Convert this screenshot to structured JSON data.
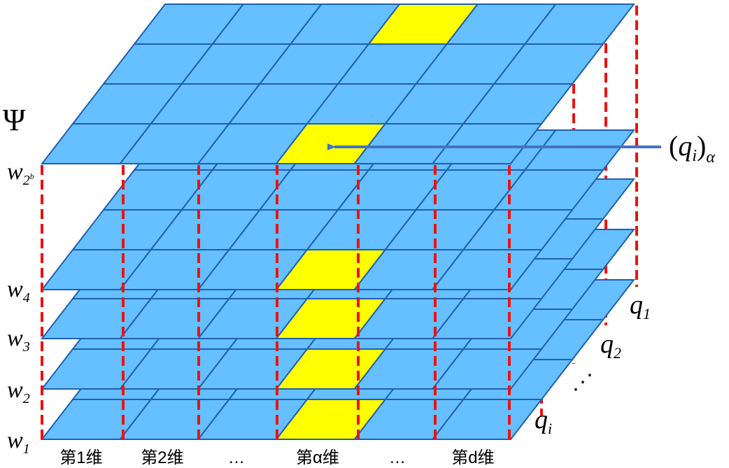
{
  "symbol": "Ψ",
  "w_labels": [
    {
      "base": "w",
      "sub": "1"
    },
    {
      "base": "w",
      "sub": "2"
    },
    {
      "base": "w",
      "sub": "3"
    },
    {
      "base": "w",
      "sub": "4"
    },
    {
      "base": "w",
      "sub": "2",
      "sup": "b"
    }
  ],
  "q_labels": [
    {
      "base": "q",
      "sub": "1"
    },
    {
      "base": "q",
      "sub": "2"
    },
    {
      "base": "q",
      "sub": "i"
    }
  ],
  "q_dots": "⋰",
  "pointer_label": {
    "lparen": "(",
    "base": "q",
    "sub": "i",
    "rparen": ")",
    "outer_sub": "α"
  },
  "dimensions": [
    "第1维",
    "第2维",
    "…",
    "第α维",
    "…",
    "第d维"
  ],
  "colors": {
    "cell_fill": "#66bfff",
    "cell_stroke": "#1f5fb0",
    "highlight": "#ffff00",
    "dashed": "#ee1111",
    "arrow": "#4472c4"
  }
}
